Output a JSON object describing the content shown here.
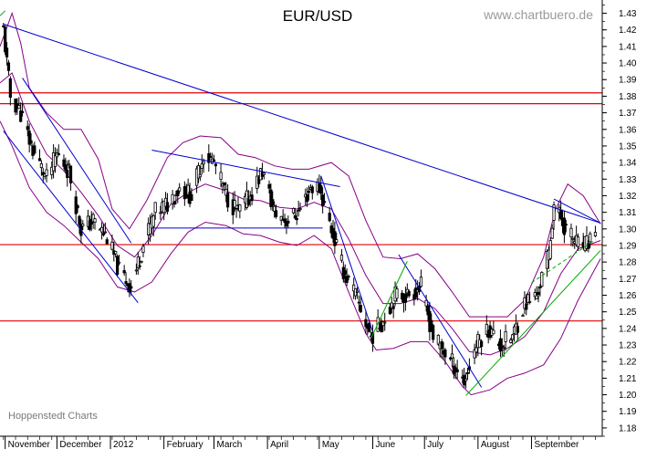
{
  "chart_data": {
    "type": "candlestick",
    "title": "EUR/USD",
    "watermark": "www.chartbuero.de",
    "credit": "Hoppenstedt Charts",
    "xlabel": "",
    "ylabel": "",
    "ylim": [
      1.175,
      1.438
    ],
    "y_ticks": [
      "1.18",
      "1.19",
      "1.20",
      "1.21",
      "1.22",
      "1.23",
      "1.24",
      "1.25",
      "1.26",
      "1.27",
      "1.28",
      "1.29",
      "1.30",
      "1.31",
      "1.32",
      "1.33",
      "1.34",
      "1.35",
      "1.36",
      "1.37",
      "1.38",
      "1.39",
      "1.40",
      "1.41",
      "1.42",
      "1.43"
    ],
    "x_range": [
      "2011-10-29",
      "2012-10-12"
    ],
    "x_ticks": [
      {
        "label": "November",
        "date": "2011-11-01"
      },
      {
        "label": "December",
        "date": "2011-12-01"
      },
      {
        "label": "2012",
        "date": "2012-01-01"
      },
      {
        "label": "February",
        "date": "2012-02-01"
      },
      {
        "label": "March",
        "date": "2012-03-01"
      },
      {
        "label": "April",
        "date": "2012-04-01"
      },
      {
        "label": "May",
        "date": "2012-05-01"
      },
      {
        "label": "June",
        "date": "2012-06-01"
      },
      {
        "label": "July",
        "date": "2012-07-01"
      },
      {
        "label": "August",
        "date": "2012-08-01"
      },
      {
        "label": "September",
        "date": "2012-09-01"
      }
    ],
    "grid": false,
    "price_path": [
      [
        "2011-10-31",
        1.42
      ],
      [
        "2011-11-04",
        1.38
      ],
      [
        "2011-11-10",
        1.37
      ],
      [
        "2011-11-16",
        1.35
      ],
      [
        "2011-11-25",
        1.33
      ],
      [
        "2011-12-01",
        1.345
      ],
      [
        "2011-12-08",
        1.335
      ],
      [
        "2011-12-15",
        1.3
      ],
      [
        "2011-12-22",
        1.305
      ],
      [
        "2011-12-30",
        1.295
      ],
      [
        "2012-01-06",
        1.275
      ],
      [
        "2012-01-13",
        1.265
      ],
      [
        "2012-01-20",
        1.29
      ],
      [
        "2012-01-27",
        1.31
      ],
      [
        "2012-02-03",
        1.315
      ],
      [
        "2012-02-10",
        1.325
      ],
      [
        "2012-02-17",
        1.32
      ],
      [
        "2012-02-24",
        1.345
      ],
      [
        "2012-03-01",
        1.34
      ],
      [
        "2012-03-08",
        1.32
      ],
      [
        "2012-03-15",
        1.31
      ],
      [
        "2012-03-22",
        1.32
      ],
      [
        "2012-03-29",
        1.335
      ],
      [
        "2012-04-05",
        1.31
      ],
      [
        "2012-04-12",
        1.305
      ],
      [
        "2012-04-19",
        1.31
      ],
      [
        "2012-04-26",
        1.325
      ],
      [
        "2012-05-01",
        1.325
      ],
      [
        "2012-05-08",
        1.3
      ],
      [
        "2012-05-15",
        1.275
      ],
      [
        "2012-05-22",
        1.26
      ],
      [
        "2012-05-31",
        1.235
      ],
      [
        "2012-06-07",
        1.245
      ],
      [
        "2012-06-14",
        1.26
      ],
      [
        "2012-06-21",
        1.26
      ],
      [
        "2012-06-29",
        1.265
      ],
      [
        "2012-07-06",
        1.235
      ],
      [
        "2012-07-13",
        1.225
      ],
      [
        "2012-07-20",
        1.215
      ],
      [
        "2012-07-24",
        1.208
      ],
      [
        "2012-07-31",
        1.23
      ],
      [
        "2012-08-07",
        1.24
      ],
      [
        "2012-08-14",
        1.23
      ],
      [
        "2012-08-21",
        1.235
      ],
      [
        "2012-08-28",
        1.255
      ],
      [
        "2012-09-04",
        1.26
      ],
      [
        "2012-09-11",
        1.285
      ],
      [
        "2012-09-14",
        1.315
      ],
      [
        "2012-09-21",
        1.3
      ],
      [
        "2012-09-28",
        1.29
      ],
      [
        "2012-10-03",
        1.29
      ],
      [
        "2012-10-08",
        1.3
      ]
    ],
    "horizontal_lines": [
      {
        "y": 1.382,
        "color": "#e00000"
      },
      {
        "y": 1.3755,
        "color": "#e00000"
      },
      {
        "y": 1.2905,
        "color": "#e00000"
      },
      {
        "y": 1.2445,
        "color": "#e00000"
      }
    ],
    "trend_lines": [
      {
        "color": "#0000cc",
        "style": "solid",
        "points": [
          [
            "2011-10-31",
            1.4235
          ],
          [
            "2012-10-11",
            1.3035
          ]
        ]
      },
      {
        "color": "#0000cc",
        "style": "solid",
        "points": [
          [
            "2011-10-31",
            1.359
          ],
          [
            "2012-01-17",
            1.2555
          ]
        ]
      },
      {
        "color": "#0000cc",
        "style": "solid",
        "points": [
          [
            "2011-11-11",
            1.391
          ],
          [
            "2012-01-13",
            1.2915
          ]
        ]
      },
      {
        "color": "#0000cc",
        "style": "solid",
        "points": [
          [
            "2012-01-25",
            1.3475
          ],
          [
            "2012-05-13",
            1.3255
          ]
        ]
      },
      {
        "color": "#0000cc",
        "style": "solid",
        "points": [
          [
            "2012-01-25",
            1.3005
          ],
          [
            "2012-05-03",
            1.3005
          ]
        ]
      },
      {
        "color": "#0000cc",
        "style": "solid",
        "points": [
          [
            "2012-05-02",
            1.332
          ],
          [
            "2012-06-01",
            1.238
          ]
        ]
      },
      {
        "color": "#0000cc",
        "style": "solid",
        "points": [
          [
            "2012-06-16",
            1.2845
          ],
          [
            "2012-08-03",
            1.2045
          ]
        ]
      },
      {
        "color": "#0000cc",
        "style": "solid",
        "points": [
          [
            "2012-09-14",
            1.318
          ],
          [
            "2012-10-11",
            1.3035
          ]
        ]
      },
      {
        "color": "#00aa00",
        "style": "solid",
        "points": [
          [
            "2012-05-31",
            1.234
          ],
          [
            "2012-06-21",
            1.2805
          ]
        ]
      },
      {
        "color": "#00aa00",
        "style": "solid",
        "points": [
          [
            "2012-07-25",
            1.1995
          ],
          [
            "2012-10-11",
            1.287
          ]
        ]
      },
      {
        "color": "#00aa00",
        "style": "dashed",
        "points": [
          [
            "2012-09-01",
            1.2675
          ],
          [
            "2012-10-08",
            1.2935
          ]
        ]
      },
      {
        "color": "#00aa00",
        "style": "solid",
        "points": [
          [
            "2011-10-29",
            1.4285
          ],
          [
            "2011-11-01",
            1.4315
          ]
        ]
      }
    ],
    "bollinger": {
      "color": "#880088",
      "upper": [
        [
          "2011-10-29",
          1.41
        ],
        [
          "2011-11-05",
          1.43
        ],
        [
          "2011-11-10",
          1.412
        ],
        [
          "2011-11-15",
          1.385
        ],
        [
          "2011-11-25",
          1.37
        ],
        [
          "2011-12-05",
          1.36
        ],
        [
          "2011-12-15",
          1.36
        ],
        [
          "2011-12-25",
          1.342
        ],
        [
          "2012-01-02",
          1.312
        ],
        [
          "2012-01-12",
          1.3
        ],
        [
          "2012-01-22",
          1.317
        ],
        [
          "2012-02-03",
          1.343
        ],
        [
          "2012-02-12",
          1.352
        ],
        [
          "2012-02-22",
          1.356
        ],
        [
          "2012-03-05",
          1.355
        ],
        [
          "2012-03-15",
          1.345
        ],
        [
          "2012-03-25",
          1.343
        ],
        [
          "2012-04-05",
          1.338
        ],
        [
          "2012-04-15",
          1.336
        ],
        [
          "2012-04-25",
          1.336
        ],
        [
          "2012-05-08",
          1.34
        ],
        [
          "2012-05-18",
          1.332
        ],
        [
          "2012-05-28",
          1.305
        ],
        [
          "2012-06-07",
          1.283
        ],
        [
          "2012-06-17",
          1.282
        ],
        [
          "2012-06-27",
          1.285
        ],
        [
          "2012-07-07",
          1.276
        ],
        [
          "2012-07-17",
          1.262
        ],
        [
          "2012-07-27",
          1.247
        ],
        [
          "2012-08-08",
          1.247
        ],
        [
          "2012-08-18",
          1.247
        ],
        [
          "2012-08-28",
          1.257
        ],
        [
          "2012-09-08",
          1.283
        ],
        [
          "2012-09-15",
          1.312
        ],
        [
          "2012-09-22",
          1.327
        ],
        [
          "2012-10-01",
          1.32
        ],
        [
          "2012-10-11",
          1.303
        ]
      ],
      "middle": [
        [
          "2011-10-29",
          1.388
        ],
        [
          "2011-11-05",
          1.394
        ],
        [
          "2011-11-15",
          1.365
        ],
        [
          "2011-11-25",
          1.345
        ],
        [
          "2011-12-05",
          1.335
        ],
        [
          "2011-12-15",
          1.322
        ],
        [
          "2011-12-25",
          1.308
        ],
        [
          "2012-01-05",
          1.29
        ],
        [
          "2012-01-15",
          1.283
        ],
        [
          "2012-01-25",
          1.296
        ],
        [
          "2012-02-05",
          1.315
        ],
        [
          "2012-02-15",
          1.322
        ],
        [
          "2012-02-25",
          1.327
        ],
        [
          "2012-03-08",
          1.323
        ],
        [
          "2012-03-18",
          1.318
        ],
        [
          "2012-03-28",
          1.317
        ],
        [
          "2012-04-08",
          1.313
        ],
        [
          "2012-04-18",
          1.312
        ],
        [
          "2012-04-28",
          1.316
        ],
        [
          "2012-05-08",
          1.312
        ],
        [
          "2012-05-18",
          1.294
        ],
        [
          "2012-05-28",
          1.272
        ],
        [
          "2012-06-07",
          1.255
        ],
        [
          "2012-06-17",
          1.255
        ],
        [
          "2012-06-27",
          1.258
        ],
        [
          "2012-07-07",
          1.252
        ],
        [
          "2012-07-17",
          1.24
        ],
        [
          "2012-07-27",
          1.226
        ],
        [
          "2012-08-08",
          1.224
        ],
        [
          "2012-08-18",
          1.228
        ],
        [
          "2012-08-28",
          1.235
        ],
        [
          "2012-09-08",
          1.25
        ],
        [
          "2012-09-18",
          1.273
        ],
        [
          "2012-09-28",
          1.288
        ],
        [
          "2012-10-11",
          1.293
        ]
      ],
      "lower": [
        [
          "2011-10-29",
          1.365
        ],
        [
          "2011-11-05",
          1.35
        ],
        [
          "2011-11-15",
          1.325
        ],
        [
          "2011-11-25",
          1.31
        ],
        [
          "2011-12-05",
          1.302
        ],
        [
          "2011-12-15",
          1.292
        ],
        [
          "2011-12-25",
          1.282
        ],
        [
          "2012-01-05",
          1.265
        ],
        [
          "2012-01-15",
          1.262
        ],
        [
          "2012-01-25",
          1.268
        ],
        [
          "2012-02-05",
          1.285
        ],
        [
          "2012-02-15",
          1.298
        ],
        [
          "2012-02-25",
          1.304
        ],
        [
          "2012-03-08",
          1.302
        ],
        [
          "2012-03-18",
          1.297
        ],
        [
          "2012-03-28",
          1.296
        ],
        [
          "2012-04-08",
          1.292
        ],
        [
          "2012-04-18",
          1.29
        ],
        [
          "2012-04-28",
          1.296
        ],
        [
          "2012-05-08",
          1.288
        ],
        [
          "2012-05-18",
          1.262
        ],
        [
          "2012-05-28",
          1.237
        ],
        [
          "2012-06-03",
          1.227
        ],
        [
          "2012-06-13",
          1.228
        ],
        [
          "2012-06-23",
          1.232
        ],
        [
          "2012-07-03",
          1.232
        ],
        [
          "2012-07-13",
          1.22
        ],
        [
          "2012-07-23",
          1.205
        ],
        [
          "2012-07-28",
          1.2
        ],
        [
          "2012-08-08",
          1.203
        ],
        [
          "2012-08-18",
          1.21
        ],
        [
          "2012-08-28",
          1.213
        ],
        [
          "2012-09-08",
          1.218
        ],
        [
          "2012-09-18",
          1.234
        ],
        [
          "2012-09-28",
          1.257
        ],
        [
          "2012-10-11",
          1.282
        ]
      ]
    }
  }
}
